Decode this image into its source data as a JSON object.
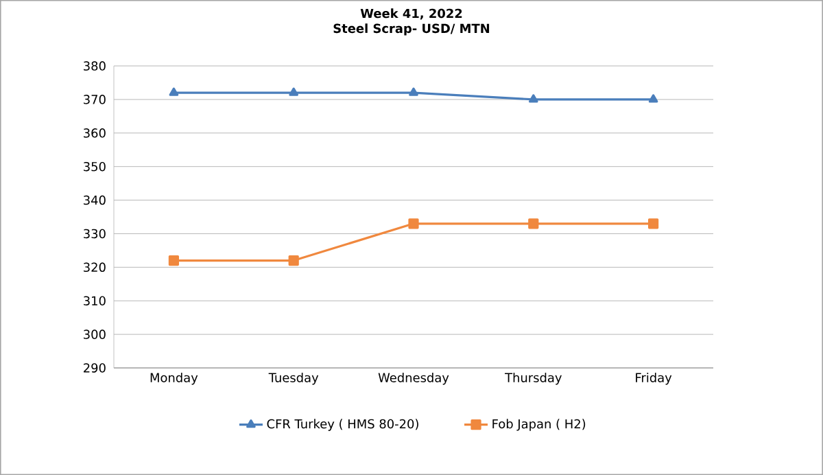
{
  "chart_data": {
    "type": "line",
    "title": "Week 41, 2022",
    "subtitle": "Steel Scrap- USD/ MTN",
    "categories": [
      "Monday",
      "Tuesday",
      "Wednesday",
      "Thursday",
      "Friday"
    ],
    "series": [
      {
        "name": "CFR Turkey ( HMS 80-20)",
        "color": "#4a7ebb",
        "marker": "triangle",
        "values": [
          372,
          372,
          372,
          370,
          370
        ]
      },
      {
        "name": "Fob Japan ( H2)",
        "color": "#f0883e",
        "marker": "square",
        "values": [
          322,
          322,
          333,
          333,
          333
        ]
      }
    ],
    "ylim": [
      290,
      380
    ],
    "yticks": [
      290,
      300,
      310,
      320,
      330,
      340,
      350,
      360,
      370,
      380
    ],
    "grid": "y",
    "legend": "bottom",
    "line_style": "solid"
  }
}
